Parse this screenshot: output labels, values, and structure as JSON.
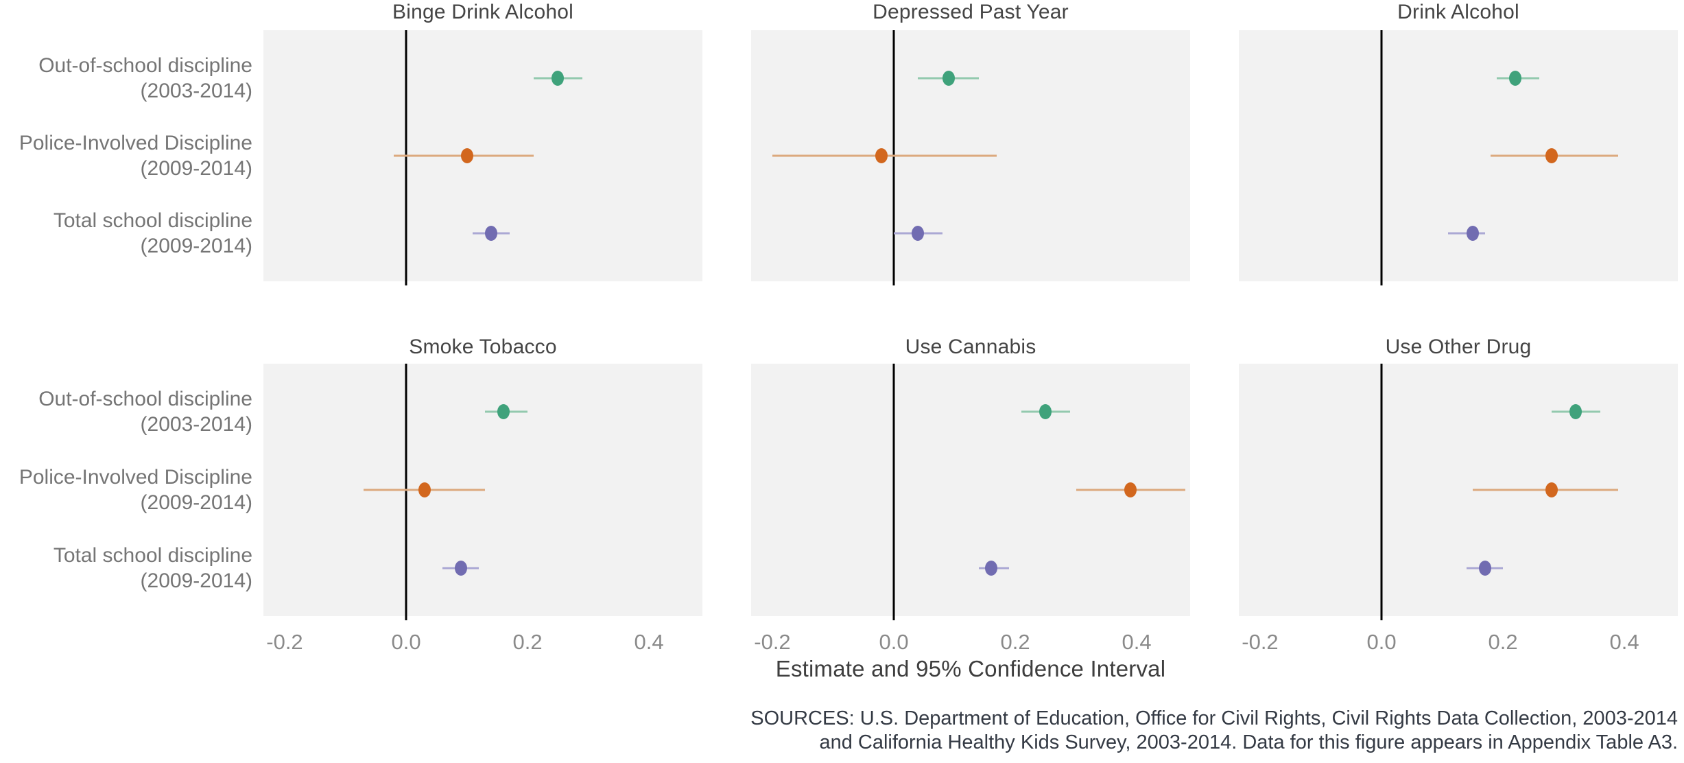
{
  "chart_data": {
    "type": "scatter",
    "subtype": "coefficient-forest-plot",
    "facets_layout": "2 rows x 3 columns, shared x axis, ticks on bottom row only",
    "x_axis": {
      "label": "Estimate and 95% Confidence Interval",
      "tick_values": [
        -0.2,
        0.0,
        0.2,
        0.4
      ],
      "tick_labels": [
        "-0.2",
        "0.0",
        "0.2",
        "0.4"
      ],
      "range": [
        -0.235,
        0.488
      ],
      "zero_reference_line": true,
      "grid": false
    },
    "series": [
      {
        "name": "Out-of-school discipline",
        "years": "(2003-2014)",
        "color": "#3FA27B",
        "ci_color": "#93C9AE"
      },
      {
        "name": "Police-Involved Discipline",
        "years": "(2009-2014)",
        "color": "#D2671E",
        "ci_color": "#DCA97E"
      },
      {
        "name": "Total school discipline",
        "years": "(2009-2014)",
        "color": "#716CB1",
        "ci_color": "#ABA8D4"
      }
    ],
    "panels": [
      {
        "title": "Binge Drink Alcohol",
        "grid_row": 0,
        "points": [
          {
            "series": "Out-of-school discipline",
            "estimate": 0.25,
            "ci_low": 0.21,
            "ci_high": 0.29
          },
          {
            "series": "Police-Involved Discipline",
            "estimate": 0.1,
            "ci_low": -0.02,
            "ci_high": 0.21
          },
          {
            "series": "Total school discipline",
            "estimate": 0.14,
            "ci_low": 0.11,
            "ci_high": 0.17
          }
        ]
      },
      {
        "title": "Depressed Past Year",
        "grid_row": 0,
        "points": [
          {
            "series": "Out-of-school discipline",
            "estimate": 0.09,
            "ci_low": 0.04,
            "ci_high": 0.14
          },
          {
            "series": "Police-Involved Discipline",
            "estimate": -0.02,
            "ci_low": -0.2,
            "ci_high": 0.17
          },
          {
            "series": "Total school discipline",
            "estimate": 0.04,
            "ci_low": 0.0,
            "ci_high": 0.08
          }
        ]
      },
      {
        "title": "Drink Alcohol",
        "grid_row": 0,
        "points": [
          {
            "series": "Out-of-school discipline",
            "estimate": 0.22,
            "ci_low": 0.19,
            "ci_high": 0.26
          },
          {
            "series": "Police-Involved Discipline",
            "estimate": 0.28,
            "ci_low": 0.18,
            "ci_high": 0.39
          },
          {
            "series": "Total school discipline",
            "estimate": 0.15,
            "ci_low": 0.11,
            "ci_high": 0.17
          }
        ]
      },
      {
        "title": "Smoke Tobacco",
        "grid_row": 1,
        "points": [
          {
            "series": "Out-of-school discipline",
            "estimate": 0.16,
            "ci_low": 0.13,
            "ci_high": 0.2
          },
          {
            "series": "Police-Involved Discipline",
            "estimate": 0.03,
            "ci_low": -0.07,
            "ci_high": 0.13
          },
          {
            "series": "Total school discipline",
            "estimate": 0.09,
            "ci_low": 0.06,
            "ci_high": 0.12
          }
        ]
      },
      {
        "title": "Use Cannabis",
        "grid_row": 1,
        "points": [
          {
            "series": "Out-of-school discipline",
            "estimate": 0.25,
            "ci_low": 0.21,
            "ci_high": 0.29
          },
          {
            "series": "Police-Involved Discipline",
            "estimate": 0.39,
            "ci_low": 0.3,
            "ci_high": 0.48
          },
          {
            "series": "Total school discipline",
            "estimate": 0.16,
            "ci_low": 0.14,
            "ci_high": 0.19
          }
        ]
      },
      {
        "title": "Use Other Drug",
        "grid_row": 1,
        "points": [
          {
            "series": "Out-of-school discipline",
            "estimate": 0.32,
            "ci_low": 0.28,
            "ci_high": 0.36
          },
          {
            "series": "Police-Involved Discipline",
            "estimate": 0.28,
            "ci_low": 0.15,
            "ci_high": 0.39
          },
          {
            "series": "Total school discipline",
            "estimate": 0.17,
            "ci_low": 0.14,
            "ci_high": 0.2
          }
        ]
      }
    ],
    "source_note": {
      "line1": "SOURCES: U.S. Department of Education, Office for Civil Rights, Civil Rights Data Collection, 2003-2014",
      "line2": "and California Healthy Kids Survey, 2003-2014. Data for this figure appears in Appendix Table A3."
    },
    "colors": {
      "panel_background": "#F2F2F2",
      "zero_line": "#000000",
      "panel_title_text": "#454545",
      "row_label_text": "#757575",
      "tick_text": "#8A8A8A",
      "axis_title_text": "#3E3E3E",
      "source_text": "#343A44"
    }
  }
}
